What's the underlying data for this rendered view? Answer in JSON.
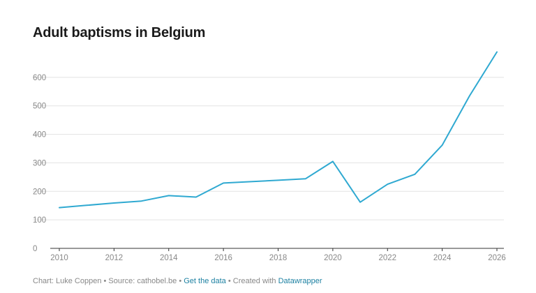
{
  "chart_data": {
    "type": "line",
    "title": "Adult baptisms in Belgium",
    "xlabel": "",
    "ylabel": "",
    "xlim": [
      2010,
      2026
    ],
    "ylim": [
      0,
      700
    ],
    "x_ticks": [
      2010,
      2012,
      2014,
      2016,
      2018,
      2020,
      2022,
      2024,
      2026
    ],
    "y_ticks": [
      0,
      100,
      200,
      300,
      400,
      500,
      600
    ],
    "grid": true,
    "series": [
      {
        "color": "#2fa9d1",
        "x": [
          2010,
          2011,
          2012,
          2013,
          2014,
          2015,
          2016,
          2017,
          2018,
          2019,
          2020,
          2021,
          2022,
          2023,
          2024,
          2025,
          2026
        ],
        "values": [
          143,
          151,
          159,
          166,
          185,
          180,
          229,
          234,
          239,
          244,
          305,
          162,
          225,
          260,
          362,
          535,
          689
        ]
      }
    ]
  },
  "footer": {
    "chart_by": "Chart: Luke Coppen",
    "sep1": " • ",
    "source": "Source: cathobel.be",
    "sep2": " • ",
    "get_data": "Get the data",
    "sep3": " • ",
    "created_with": "Created with ",
    "tool": "Datawrapper"
  },
  "colors": {
    "line": "#2fa9d1",
    "link": "#1d81a2",
    "grid": "#e3e3e3",
    "axis": "#333333",
    "muted_text": "#888888"
  }
}
